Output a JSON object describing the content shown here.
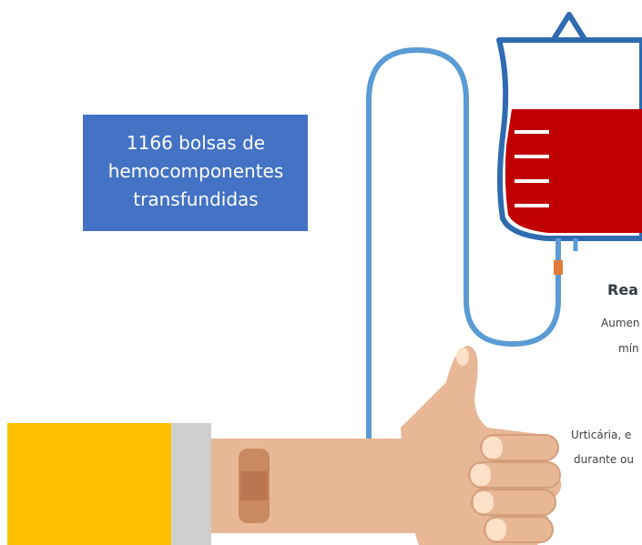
{
  "callout": {
    "lines": [
      "1166 bolsas de",
      "hemocomponentes",
      "transfundidas"
    ]
  },
  "side_panel": {
    "heading": "Rea",
    "lines": [
      "Aumen",
      "mín",
      "Urticária, e",
      "durante ou"
    ]
  }
}
